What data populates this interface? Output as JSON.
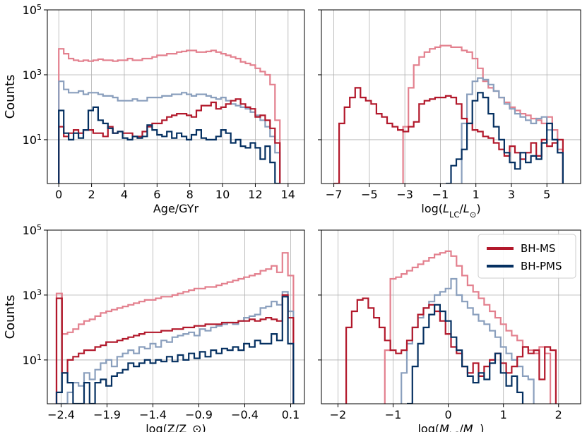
{
  "figure_colors": {
    "bh_ms": "#b2182b",
    "bh_pms": "#053061",
    "bh_ms_light": "#e3808e",
    "bh_pms_light": "#8a9fbd"
  },
  "legend": {
    "items": [
      {
        "label": "BH-MS"
      },
      {
        "label": "BH-PMS"
      }
    ]
  },
  "chart_data": [
    {
      "type": "line",
      "id": "age",
      "xlabel": "Age/GYr",
      "ylabel": "Counts",
      "ylim_log10": [
        -0.35,
        5
      ],
      "xlim": [
        -0.7,
        15.0
      ],
      "xticks": [
        0,
        2,
        4,
        6,
        8,
        10,
        12,
        14
      ],
      "xtick_labels": [
        "0",
        "2",
        "4",
        "6",
        "8",
        "10",
        "12",
        "14"
      ],
      "yticks_log10": [
        1,
        3,
        5
      ],
      "ytick_labels": [
        {
          "base": "10",
          "exp": "1"
        },
        {
          "base": "10",
          "exp": "3"
        },
        {
          "base": "10",
          "exp": "5"
        }
      ],
      "bin_edges": [
        0,
        0.3,
        0.6,
        0.9,
        1.2,
        1.5,
        1.8,
        2.1,
        2.4,
        2.7,
        3,
        3.3,
        3.6,
        3.9,
        4.2,
        4.5,
        4.8,
        5.1,
        5.4,
        5.7,
        6,
        6.3,
        6.6,
        6.9,
        7.2,
        7.5,
        7.8,
        8.1,
        8.4,
        8.7,
        9,
        9.3,
        9.6,
        9.9,
        10.2,
        10.5,
        10.8,
        11.1,
        11.4,
        11.7,
        12,
        12.3,
        12.6,
        12.9,
        13.2,
        13.5,
        13.8
      ],
      "series": [
        {
          "name": "BH-MS (light)",
          "color_key": "bh_ms_light",
          "log10_counts": [
            3.8,
            3.65,
            3.5,
            3.45,
            3.42,
            3.45,
            3.42,
            3.45,
            3.48,
            3.45,
            3.45,
            3.42,
            3.45,
            3.45,
            3.5,
            3.45,
            3.45,
            3.5,
            3.5,
            3.55,
            3.6,
            3.6,
            3.65,
            3.65,
            3.7,
            3.72,
            3.75,
            3.75,
            3.7,
            3.7,
            3.72,
            3.75,
            3.7,
            3.65,
            3.6,
            3.55,
            3.5,
            3.4,
            3.35,
            3.3,
            3.2,
            3.1,
            3.0,
            2.7,
            1.6
          ]
        },
        {
          "name": "BH-PMS (light)",
          "color_key": "bh_pms_light",
          "log10_counts": [
            2.8,
            2.55,
            2.45,
            2.45,
            2.5,
            2.4,
            2.45,
            2.45,
            2.4,
            2.35,
            2.35,
            2.3,
            2.2,
            2.2,
            2.2,
            2.25,
            2.2,
            2.2,
            2.3,
            2.3,
            2.3,
            2.35,
            2.35,
            2.4,
            2.4,
            2.45,
            2.4,
            2.35,
            2.4,
            2.4,
            2.35,
            2.3,
            2.25,
            2.3,
            2.2,
            2.1,
            2.05,
            2.0,
            1.95,
            1.85,
            1.75,
            1.6,
            1.4,
            1.1,
            0.6
          ]
        },
        {
          "name": "BH-MS",
          "color_key": "bh_ms",
          "log10_counts": [
            1.4,
            1.1,
            1.2,
            1.3,
            1.2,
            1.3,
            1.3,
            1.2,
            1.2,
            1.1,
            1.4,
            1.2,
            1.25,
            1.2,
            1.2,
            1.1,
            1.1,
            1.25,
            1.4,
            1.5,
            1.5,
            1.6,
            1.7,
            1.75,
            1.8,
            1.8,
            1.75,
            1.7,
            1.9,
            2.05,
            2.05,
            2.15,
            1.95,
            2.0,
            2.1,
            2.2,
            2.25,
            2.1,
            2.0,
            1.95,
            1.7,
            1.75,
            1.6,
            1.35,
            0.9
          ]
        },
        {
          "name": "BH-PMS",
          "color_key": "bh_pms",
          "log10_counts": [
            1.9,
            1.2,
            1.0,
            1.2,
            1.05,
            1.3,
            1.9,
            2.0,
            1.6,
            1.5,
            1.35,
            1.2,
            1.25,
            1.05,
            1.0,
            1.1,
            1.05,
            1.1,
            1.45,
            1.3,
            1.15,
            1.1,
            1.25,
            1.05,
            1.2,
            1.1,
            1.0,
            1.15,
            1.3,
            1.05,
            1.0,
            1.0,
            1.1,
            1.3,
            1.2,
            0.9,
            1.0,
            0.8,
            0.75,
            0.9,
            0.75,
            0.4,
            0.8,
            0.3,
            -0.35
          ]
        }
      ]
    },
    {
      "type": "line",
      "id": "lum",
      "xlabel": "log(L_LC/L_⊙)",
      "ylabel": "",
      "ylim_log10": [
        -0.35,
        5
      ],
      "xlim": [
        -7.7,
        6.9
      ],
      "xticks": [
        -7,
        -5,
        -3,
        -1,
        1,
        3,
        5
      ],
      "xtick_labels": [
        "−7",
        "−5",
        "−3",
        "−1",
        "1",
        "3",
        "5"
      ],
      "yticks_log10": [
        1,
        3,
        5
      ],
      "ytick_labels": [],
      "bin_edges": [
        -7,
        -6.7,
        -6.4,
        -6.1,
        -5.8,
        -5.5,
        -5.2,
        -4.9,
        -4.6,
        -4.3,
        -4.0,
        -3.7,
        -3.4,
        -3.1,
        -2.8,
        -2.5,
        -2.2,
        -1.9,
        -1.6,
        -1.3,
        -1.0,
        -0.7,
        -0.4,
        -0.1,
        0.2,
        0.5,
        0.8,
        1.1,
        1.4,
        1.7,
        2.0,
        2.3,
        2.6,
        2.9,
        3.2,
        3.5,
        3.8,
        4.1,
        4.4,
        4.7,
        5.0,
        5.3,
        5.6,
        5.9
      ],
      "series": [
        {
          "name": "BH-MS (light)",
          "color_key": "bh_ms_light",
          "log10_counts": [
            null,
            null,
            null,
            null,
            null,
            null,
            null,
            null,
            null,
            null,
            null,
            null,
            null,
            1.4,
            2.6,
            3.3,
            3.55,
            3.7,
            3.8,
            3.85,
            3.9,
            3.9,
            3.85,
            3.85,
            3.75,
            3.7,
            3.5,
            3.2,
            2.8,
            2.6,
            2.5,
            2.3,
            2.15,
            2.0,
            1.9,
            1.8,
            1.75,
            1.65,
            1.6,
            1.5,
            1.7,
            1.3,
            0.7
          ]
        },
        {
          "name": "BH-PMS (light)",
          "color_key": "bh_pms_light",
          "log10_counts": [
            null,
            null,
            null,
            null,
            null,
            null,
            null,
            null,
            null,
            null,
            null,
            null,
            null,
            null,
            null,
            null,
            null,
            null,
            null,
            null,
            null,
            null,
            null,
            null,
            1.5,
            2.4,
            2.8,
            2.9,
            2.85,
            2.7,
            2.5,
            2.3,
            2.1,
            1.95,
            1.8,
            1.7,
            1.6,
            1.5,
            1.65,
            1.7,
            1.3,
            1.0,
            0.6
          ]
        },
        {
          "name": "BH-MS",
          "color_key": "bh_ms",
          "log10_counts": [
            -0.35,
            1.5,
            2.0,
            2.3,
            2.6,
            2.3,
            2.2,
            2.1,
            1.8,
            1.7,
            1.5,
            1.4,
            1.3,
            1.25,
            1.4,
            1.55,
            2.1,
            2.2,
            2.25,
            2.3,
            2.3,
            2.35,
            2.3,
            2.1,
            1.65,
            1.5,
            1.3,
            1.25,
            1.1,
            1.05,
            0.9,
            0.7,
            0.5,
            0.8,
            0.6,
            0.4,
            0.6,
            0.9,
            0.5,
            1.0,
            0.8,
            0.9,
            1.0
          ]
        },
        {
          "name": "BH-PMS",
          "color_key": "bh_pms",
          "log10_counts": [
            null,
            null,
            null,
            null,
            null,
            null,
            null,
            null,
            null,
            null,
            null,
            null,
            null,
            null,
            null,
            null,
            null,
            null,
            null,
            null,
            null,
            -0.35,
            0.2,
            0.4,
            0.7,
            1.5,
            2.2,
            2.45,
            2.3,
            1.8,
            1.4,
            1.0,
            0.6,
            0.3,
            0.1,
            0.6,
            0.3,
            0.5,
            0.4,
            0.9,
            1.5,
            1.0,
            0.6
          ]
        }
      ]
    },
    {
      "type": "line",
      "id": "metal",
      "xlabel": "log(Z/Z_⊙)",
      "ylabel": "Counts",
      "ylim_log10": [
        -0.35,
        5
      ],
      "xlim": [
        -2.55,
        0.25
      ],
      "xticks": [
        -2.4,
        -1.9,
        -1.4,
        -0.9,
        -0.4,
        0.1
      ],
      "xtick_labels": [
        "−2.4",
        "−1.9",
        "−1.4",
        "−0.9",
        "−0.4",
        "0.1"
      ],
      "yticks_log10": [
        1,
        3,
        5
      ],
      "ytick_labels": [
        {
          "base": "10",
          "exp": "1"
        },
        {
          "base": "10",
          "exp": "3"
        },
        {
          "base": "10",
          "exp": "5"
        }
      ],
      "bin_edges": [
        -2.45,
        -2.39,
        -2.33,
        -2.27,
        -2.21,
        -2.15,
        -2.09,
        -2.03,
        -1.97,
        -1.91,
        -1.85,
        -1.79,
        -1.73,
        -1.67,
        -1.61,
        -1.55,
        -1.49,
        -1.43,
        -1.37,
        -1.31,
        -1.25,
        -1.19,
        -1.13,
        -1.07,
        -1.01,
        -0.95,
        -0.89,
        -0.83,
        -0.77,
        -0.71,
        -0.65,
        -0.59,
        -0.53,
        -0.47,
        -0.41,
        -0.35,
        -0.29,
        -0.23,
        -0.17,
        -0.11,
        -0.05,
        0.01,
        0.07,
        0.13
      ],
      "series": [
        {
          "name": "BH-MS (light)",
          "color_key": "bh_ms_light",
          "log10_counts": [
            3.05,
            1.8,
            1.85,
            1.95,
            2.1,
            2.2,
            2.25,
            2.35,
            2.45,
            2.5,
            2.55,
            2.6,
            2.65,
            2.7,
            2.75,
            2.8,
            2.85,
            2.85,
            2.9,
            2.95,
            2.95,
            3.0,
            3.05,
            3.1,
            3.15,
            3.2,
            3.2,
            3.25,
            3.25,
            3.3,
            3.35,
            3.4,
            3.45,
            3.5,
            3.55,
            3.6,
            3.65,
            3.75,
            3.8,
            3.9,
            3.7,
            4.3,
            3.6
          ]
        },
        {
          "name": "BH-PMS (light)",
          "color_key": "bh_pms_light",
          "log10_counts": [
            -0.35,
            -0.35,
            0.0,
            0.3,
            0.2,
            0.6,
            0.4,
            0.7,
            0.9,
            1.0,
            0.8,
            1.1,
            1.2,
            1.3,
            1.2,
            1.4,
            1.35,
            1.5,
            1.4,
            1.6,
            1.55,
            1.7,
            1.75,
            1.8,
            1.85,
            1.75,
            1.95,
            1.9,
            2.0,
            2.05,
            2.1,
            2.15,
            2.1,
            2.2,
            2.3,
            2.35,
            2.4,
            2.6,
            2.65,
            2.8,
            2.7,
            3.1,
            2.5
          ]
        },
        {
          "name": "BH-MS",
          "color_key": "bh_ms",
          "log10_counts": [
            2.9,
            0.6,
            1.0,
            1.1,
            1.2,
            1.3,
            1.3,
            1.4,
            1.45,
            1.55,
            1.55,
            1.6,
            1.65,
            1.7,
            1.75,
            1.8,
            1.85,
            1.85,
            1.85,
            1.9,
            1.9,
            1.95,
            1.95,
            2.0,
            2.0,
            2.05,
            2.05,
            2.1,
            2.1,
            2.1,
            2.15,
            2.15,
            2.15,
            2.2,
            2.2,
            2.25,
            2.2,
            2.25,
            2.3,
            2.25,
            2.2,
            3.0,
            2.3
          ]
        },
        {
          "name": "BH-PMS",
          "color_key": "bh_pms",
          "log10_counts": [
            0.0,
            0.6,
            0.3,
            -0.35,
            -0.35,
            0.3,
            -0.35,
            0.3,
            0.4,
            0.2,
            0.5,
            0.6,
            0.7,
            0.9,
            0.8,
            0.9,
            1.0,
            0.9,
            1.0,
            0.95,
            1.1,
            0.95,
            1.15,
            1.0,
            1.2,
            1.05,
            1.25,
            1.1,
            1.3,
            1.2,
            1.35,
            1.3,
            1.4,
            1.3,
            1.5,
            1.4,
            1.6,
            1.5,
            1.5,
            1.8,
            1.6,
            2.95,
            1.5
          ]
        }
      ]
    },
    {
      "type": "line",
      "id": "mass",
      "xlabel": "log(M_LC/M_⊙)",
      "ylabel": "",
      "ylim_log10": [
        -0.35,
        5
      ],
      "xlim": [
        -2.3,
        2.4
      ],
      "xticks": [
        -2,
        -1,
        0,
        1,
        2
      ],
      "xtick_labels": [
        "−2",
        "−1",
        "0",
        "1",
        "2"
      ],
      "yticks_log10": [
        1,
        3,
        5
      ],
      "ytick_labels": [],
      "bin_edges": [
        -1.85,
        -1.75,
        -1.65,
        -1.55,
        -1.45,
        -1.35,
        -1.25,
        -1.15,
        -1.05,
        -0.95,
        -0.85,
        -0.75,
        -0.65,
        -0.55,
        -0.45,
        -0.35,
        -0.25,
        -0.15,
        -0.05,
        0.05,
        0.15,
        0.25,
        0.35,
        0.45,
        0.55,
        0.65,
        0.75,
        0.85,
        0.95,
        1.05,
        1.15,
        1.25,
        1.35,
        1.45,
        1.55,
        1.65,
        1.75,
        1.85,
        1.95
      ],
      "series": [
        {
          "name": "BH-MS (light)",
          "color_key": "bh_ms_light",
          "log10_counts": [
            null,
            null,
            null,
            null,
            null,
            null,
            null,
            1.3,
            3.5,
            3.55,
            3.65,
            3.75,
            3.85,
            3.95,
            4.05,
            4.15,
            4.25,
            4.3,
            4.35,
            4.2,
            3.9,
            3.6,
            3.3,
            3.1,
            2.9,
            2.7,
            2.5,
            2.3,
            2.1,
            1.9,
            1.75,
            1.6,
            1.4,
            1.3,
            1.2,
            1.4,
            1.2,
            null
          ]
        },
        {
          "name": "BH-PMS (light)",
          "color_key": "bh_pms_light",
          "log10_counts": [
            null,
            null,
            null,
            null,
            null,
            null,
            null,
            null,
            null,
            null,
            0.6,
            1.5,
            2.0,
            2.3,
            2.6,
            2.8,
            3.0,
            3.1,
            3.2,
            3.5,
            3.0,
            2.8,
            2.6,
            2.4,
            2.2,
            2.1,
            1.9,
            1.7,
            1.4,
            1.2,
            1.0,
            0.8,
            0.5,
            0.4,
            null,
            null,
            null,
            null
          ]
        },
        {
          "name": "BH-MS",
          "color_key": "bh_ms",
          "log10_counts": [
            2.0,
            2.5,
            2.85,
            2.9,
            2.6,
            2.3,
            2.0,
            1.6,
            1.3,
            1.2,
            1.3,
            1.6,
            2.0,
            2.4,
            2.6,
            2.7,
            2.5,
            2.2,
            1.8,
            1.4,
            1.2,
            0.8,
            0.6,
            0.9,
            0.5,
            0.8,
            1.0,
            1.2,
            0.9,
            0.6,
            0.8,
            1.1,
            1.4,
            1.2,
            1.3,
            0.4,
            1.4,
            1.3
          ]
        },
        {
          "name": "BH-PMS",
          "color_key": "bh_pms",
          "log10_counts": [
            null,
            null,
            null,
            null,
            null,
            null,
            null,
            null,
            null,
            null,
            null,
            -0.35,
            0.8,
            1.5,
            2.0,
            2.4,
            2.7,
            2.5,
            2.2,
            1.7,
            1.3,
            0.8,
            0.5,
            0.3,
            0.6,
            0.4,
            0.9,
            1.2,
            0.6,
            0.2,
            0.5,
            0.0,
            null,
            null,
            null,
            null,
            null,
            null
          ]
        }
      ]
    }
  ]
}
